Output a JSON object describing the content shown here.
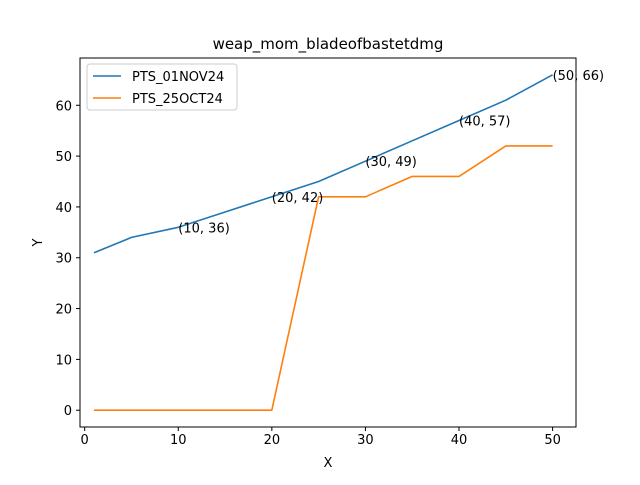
{
  "chart_data": {
    "type": "line",
    "title": "weap_mom_bladeofbastetdmg",
    "xlabel": "X",
    "ylabel": "Y",
    "xlim": [
      -0.5,
      52.5
    ],
    "ylim": [
      -3.3,
      69.3
    ],
    "x_ticks": [
      0,
      10,
      20,
      30,
      40,
      50
    ],
    "y_ticks": [
      0,
      10,
      20,
      30,
      40,
      50,
      60
    ],
    "grid": false,
    "legend_position": "upper-left",
    "series": [
      {
        "name": "PTS_01NOV24",
        "color": "#1f77b4",
        "points": [
          [
            1,
            31
          ],
          [
            5,
            34
          ],
          [
            10,
            36
          ],
          [
            15,
            39
          ],
          [
            20,
            42
          ],
          [
            25,
            45
          ],
          [
            30,
            49
          ],
          [
            35,
            53
          ],
          [
            40,
            57
          ],
          [
            45,
            61
          ],
          [
            50,
            66
          ]
        ]
      },
      {
        "name": "PTS_25OCT24",
        "color": "#ff7f0e",
        "points": [
          [
            1,
            0
          ],
          [
            5,
            0
          ],
          [
            10,
            0
          ],
          [
            15,
            0
          ],
          [
            20,
            0
          ],
          [
            25,
            42
          ],
          [
            30,
            42
          ],
          [
            35,
            46
          ],
          [
            40,
            46
          ],
          [
            45,
            52
          ],
          [
            50,
            52
          ]
        ]
      }
    ],
    "annotations": [
      {
        "x": 10,
        "y": 36,
        "text": "(10, 36)"
      },
      {
        "x": 20,
        "y": 42,
        "text": "(20, 42)"
      },
      {
        "x": 30,
        "y": 49,
        "text": "(30, 49)"
      },
      {
        "x": 40,
        "y": 57,
        "text": "(40, 57)"
      },
      {
        "x": 50,
        "y": 66,
        "text": "(50, 66)"
      }
    ]
  }
}
